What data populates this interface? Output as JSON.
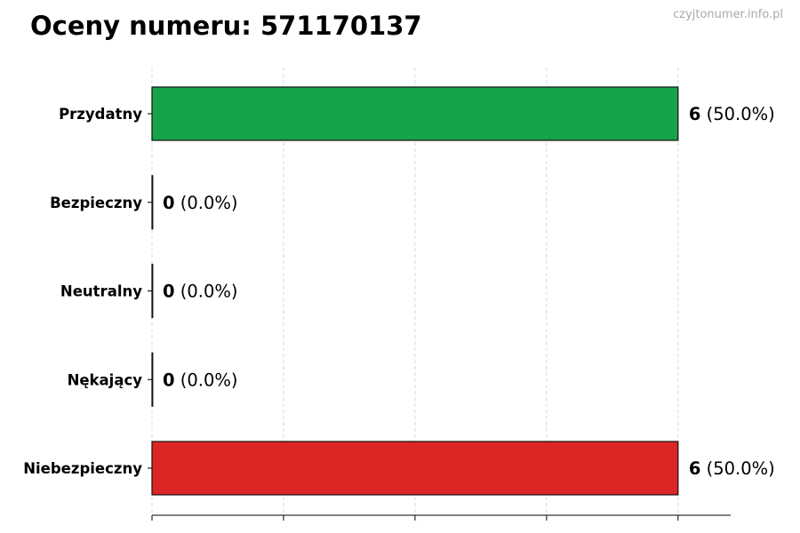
{
  "chart_data": {
    "type": "bar",
    "orientation": "horizontal",
    "title": "Oceny numeru: 571170137",
    "watermark": "czyjtonumer.info.pl",
    "categories": [
      "Przydatny",
      "Bezpieczny",
      "Neutralny",
      "Nękający",
      "Niebezpieczny"
    ],
    "values": [
      6,
      0,
      0,
      0,
      6
    ],
    "percent_labels": [
      "(50.0%)",
      "(0.0%)",
      "(0.0%)",
      "(0.0%)",
      "(50.0%)"
    ],
    "colors": [
      "#16a34a",
      "#16a34a",
      "#9ca3af",
      "#dc2626",
      "#dc2626"
    ],
    "xlim": [
      0,
      6.6
    ],
    "xticks": [
      0,
      1.5,
      3,
      4.5,
      6
    ],
    "grid": "x-dashed",
    "xlabel": "",
    "ylabel": ""
  }
}
